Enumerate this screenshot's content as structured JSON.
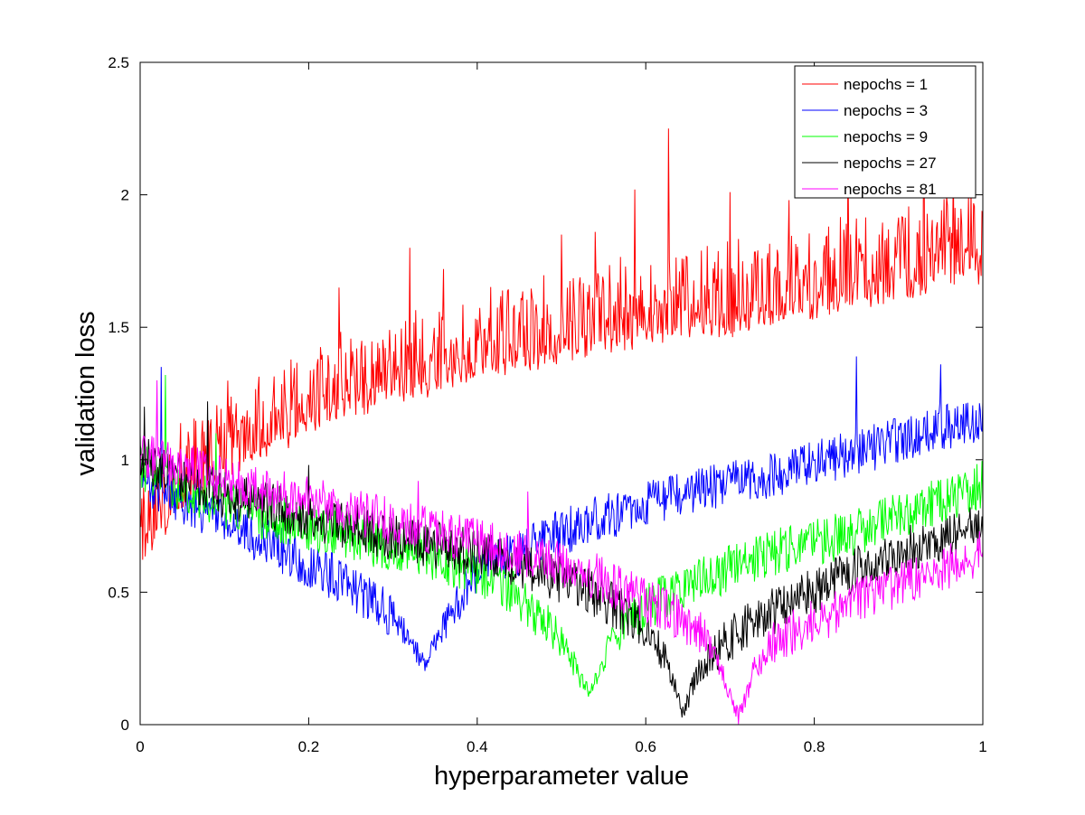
{
  "chart_data": {
    "type": "line",
    "title": "",
    "xlabel": "hyperparameter value",
    "ylabel": "validation loss",
    "xlim": [
      0,
      1
    ],
    "ylim": [
      0,
      2.5
    ],
    "xticks": [
      0,
      0.2,
      0.4,
      0.6,
      0.8,
      1
    ],
    "xtick_labels": [
      "0",
      "0.2",
      "0.4",
      "0.6",
      "0.8",
      "1"
    ],
    "yticks": [
      0,
      0.5,
      1,
      1.5,
      2,
      2.5
    ],
    "ytick_labels": [
      "0",
      "0.5",
      "1",
      "1.5",
      "2",
      "2.5"
    ],
    "grid": false,
    "legend_position": "top-right",
    "series": [
      {
        "name": "nepochs = 1",
        "color": "#ff0000",
        "points": [
          [
            0,
            0.62
          ],
          [
            0.05,
            0.85
          ],
          [
            0.1,
            0.98
          ],
          [
            0.15,
            1.05
          ],
          [
            0.2,
            1.15
          ],
          [
            0.25,
            1.2
          ],
          [
            0.3,
            1.25
          ],
          [
            0.35,
            1.3
          ],
          [
            0.4,
            1.35
          ],
          [
            0.45,
            1.38
          ],
          [
            0.5,
            1.42
          ],
          [
            0.55,
            1.45
          ],
          [
            0.6,
            1.48
          ],
          [
            0.65,
            1.5
          ],
          [
            0.7,
            1.52
          ],
          [
            0.75,
            1.55
          ],
          [
            0.8,
            1.58
          ],
          [
            0.85,
            1.62
          ],
          [
            0.9,
            1.65
          ],
          [
            0.95,
            1.7
          ],
          [
            1,
            1.72
          ]
        ],
        "peaks": [
          [
            0.236,
            1.65
          ],
          [
            0.32,
            1.8
          ],
          [
            0.36,
            1.72
          ],
          [
            0.5,
            1.85
          ],
          [
            0.54,
            1.86
          ],
          [
            0.587,
            2.02
          ],
          [
            0.627,
            2.25
          ],
          [
            0.7,
            2.01
          ],
          [
            0.77,
            1.98
          ],
          [
            0.84,
            2.15
          ],
          [
            0.93,
            2.43
          ],
          [
            0.965,
            2.11
          ]
        ]
      },
      {
        "name": "nepochs = 3",
        "color": "#0000ff",
        "points": [
          [
            0,
            0.9
          ],
          [
            0.05,
            0.82
          ],
          [
            0.1,
            0.74
          ],
          [
            0.15,
            0.66
          ],
          [
            0.2,
            0.58
          ],
          [
            0.25,
            0.5
          ],
          [
            0.3,
            0.38
          ],
          [
            0.338,
            0.22
          ],
          [
            0.36,
            0.35
          ],
          [
            0.4,
            0.55
          ],
          [
            0.45,
            0.62
          ],
          [
            0.5,
            0.7
          ],
          [
            0.55,
            0.76
          ],
          [
            0.6,
            0.8
          ],
          [
            0.65,
            0.84
          ],
          [
            0.7,
            0.88
          ],
          [
            0.75,
            0.92
          ],
          [
            0.8,
            0.96
          ],
          [
            0.85,
            1.0
          ],
          [
            0.9,
            1.05
          ],
          [
            0.95,
            1.1
          ],
          [
            1,
            1.12
          ]
        ],
        "peaks": [
          [
            0.025,
            1.35
          ],
          [
            0.85,
            1.39
          ],
          [
            0.95,
            1.36
          ]
        ]
      },
      {
        "name": "nepochs = 9",
        "color": "#00ff00",
        "points": [
          [
            0,
            0.95
          ],
          [
            0.05,
            0.86
          ],
          [
            0.1,
            0.8
          ],
          [
            0.15,
            0.76
          ],
          [
            0.2,
            0.72
          ],
          [
            0.25,
            0.68
          ],
          [
            0.3,
            0.64
          ],
          [
            0.35,
            0.6
          ],
          [
            0.4,
            0.55
          ],
          [
            0.45,
            0.45
          ],
          [
            0.5,
            0.3
          ],
          [
            0.533,
            0.1
          ],
          [
            0.56,
            0.3
          ],
          [
            0.6,
            0.42
          ],
          [
            0.65,
            0.5
          ],
          [
            0.7,
            0.56
          ],
          [
            0.75,
            0.62
          ],
          [
            0.8,
            0.66
          ],
          [
            0.85,
            0.7
          ],
          [
            0.9,
            0.76
          ],
          [
            0.95,
            0.82
          ],
          [
            1,
            0.88
          ]
        ],
        "peaks": [
          [
            0.03,
            1.32
          ],
          [
            0.09,
            1.1
          ]
        ]
      },
      {
        "name": "nepochs = 27",
        "color": "#000000",
        "points": [
          [
            0,
            0.98
          ],
          [
            0.05,
            0.9
          ],
          [
            0.1,
            0.84
          ],
          [
            0.15,
            0.8
          ],
          [
            0.2,
            0.76
          ],
          [
            0.25,
            0.72
          ],
          [
            0.3,
            0.68
          ],
          [
            0.35,
            0.65
          ],
          [
            0.4,
            0.62
          ],
          [
            0.45,
            0.58
          ],
          [
            0.5,
            0.52
          ],
          [
            0.55,
            0.45
          ],
          [
            0.6,
            0.35
          ],
          [
            0.625,
            0.22
          ],
          [
            0.645,
            0.03
          ],
          [
            0.66,
            0.18
          ],
          [
            0.7,
            0.3
          ],
          [
            0.75,
            0.4
          ],
          [
            0.8,
            0.48
          ],
          [
            0.85,
            0.56
          ],
          [
            0.9,
            0.62
          ],
          [
            0.95,
            0.68
          ],
          [
            1,
            0.72
          ]
        ],
        "peaks": [
          [
            0.005,
            1.2
          ],
          [
            0.08,
            1.22
          ],
          [
            0.2,
            0.98
          ]
        ]
      },
      {
        "name": "nepochs = 81",
        "color": "#ff00ff",
        "points": [
          [
            0,
            1.0
          ],
          [
            0.05,
            0.95
          ],
          [
            0.1,
            0.9
          ],
          [
            0.15,
            0.86
          ],
          [
            0.2,
            0.82
          ],
          [
            0.25,
            0.78
          ],
          [
            0.3,
            0.74
          ],
          [
            0.35,
            0.7
          ],
          [
            0.4,
            0.66
          ],
          [
            0.45,
            0.62
          ],
          [
            0.5,
            0.58
          ],
          [
            0.55,
            0.52
          ],
          [
            0.6,
            0.44
          ],
          [
            0.65,
            0.36
          ],
          [
            0.68,
            0.28
          ],
          [
            0.71,
            0.02
          ],
          [
            0.73,
            0.2
          ],
          [
            0.75,
            0.28
          ],
          [
            0.8,
            0.36
          ],
          [
            0.85,
            0.44
          ],
          [
            0.9,
            0.5
          ],
          [
            0.95,
            0.56
          ],
          [
            1,
            0.62
          ]
        ],
        "peaks": [
          [
            0.02,
            1.3
          ],
          [
            0.33,
            0.92
          ],
          [
            0.46,
            0.88
          ]
        ]
      }
    ]
  }
}
